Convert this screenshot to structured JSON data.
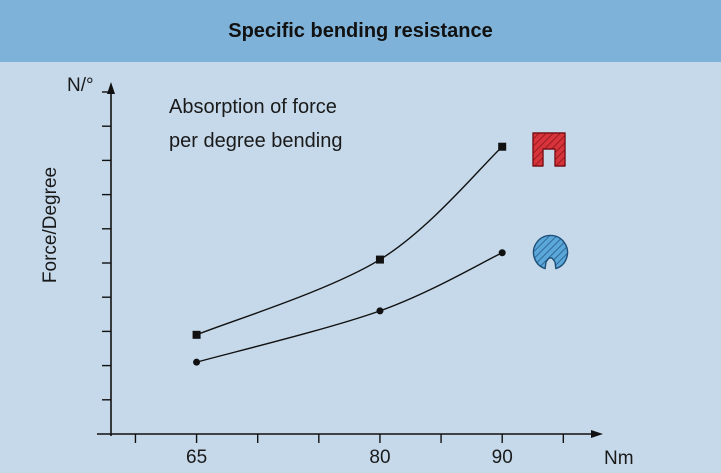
{
  "chart_data": {
    "type": "line",
    "title": "Specific bending resistance",
    "annotation": [
      "Absorption of force",
      "per degree bending"
    ],
    "xlabel": "Nm",
    "ylabel": "Force/Degree",
    "yunit": "N/°",
    "x": [
      65,
      80,
      90
    ],
    "xticks": [
      "65",
      "80",
      "90"
    ],
    "xlim": [
      58,
      98
    ],
    "ylim": [
      0,
      10
    ],
    "series": [
      {
        "values": [
          2.9,
          5.1,
          8.4
        ],
        "marker": "square",
        "icon": "rectangular-profile-hatched-icon",
        "icon_color": "#d8333a"
      },
      {
        "values": [
          2.1,
          3.6,
          5.3
        ],
        "marker": "circle",
        "icon": "round-profile-hatched-icon",
        "icon_color": "#5aa8da"
      }
    ],
    "grid": false
  },
  "colors": {
    "header": "#7eb2d8",
    "background": "#c5d9ea",
    "line": "#111111"
  }
}
